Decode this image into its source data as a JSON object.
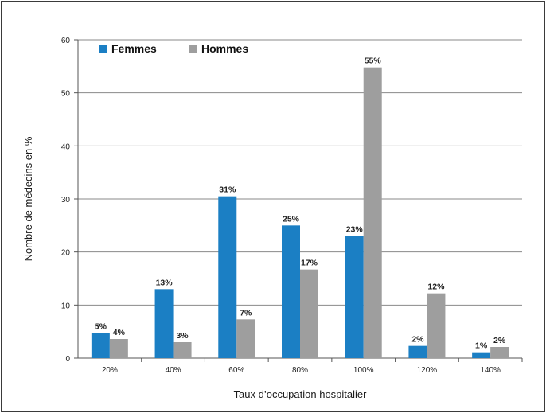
{
  "chart_data": {
    "type": "bar",
    "title": "",
    "xlabel": "Taux d’occupation hospitalier",
    "ylabel": "Nombre de médecins en %",
    "categories": [
      "20%",
      "40%",
      "60%",
      "80%",
      "100%",
      "120%",
      "140%"
    ],
    "series": [
      {
        "name": "Femmes",
        "color": "#1b7fc4",
        "values": [
          4.7,
          13.0,
          30.5,
          25.0,
          23.0,
          2.3,
          1.1
        ],
        "labels": [
          "5%",
          "13%",
          "31%",
          "25%",
          "23%",
          "2%",
          "1%"
        ]
      },
      {
        "name": "Hommes",
        "color": "#9e9e9e",
        "values": [
          3.6,
          3.0,
          7.3,
          16.7,
          54.8,
          12.2,
          2.1
        ],
        "labels": [
          "4%",
          "3%",
          "7%",
          "17%",
          "55%",
          "12%",
          "2%"
        ]
      }
    ],
    "ylim": [
      0,
      60
    ],
    "yticks": [
      0,
      10,
      20,
      30,
      40,
      50,
      60
    ],
    "grid": true,
    "legend": "top-left"
  }
}
